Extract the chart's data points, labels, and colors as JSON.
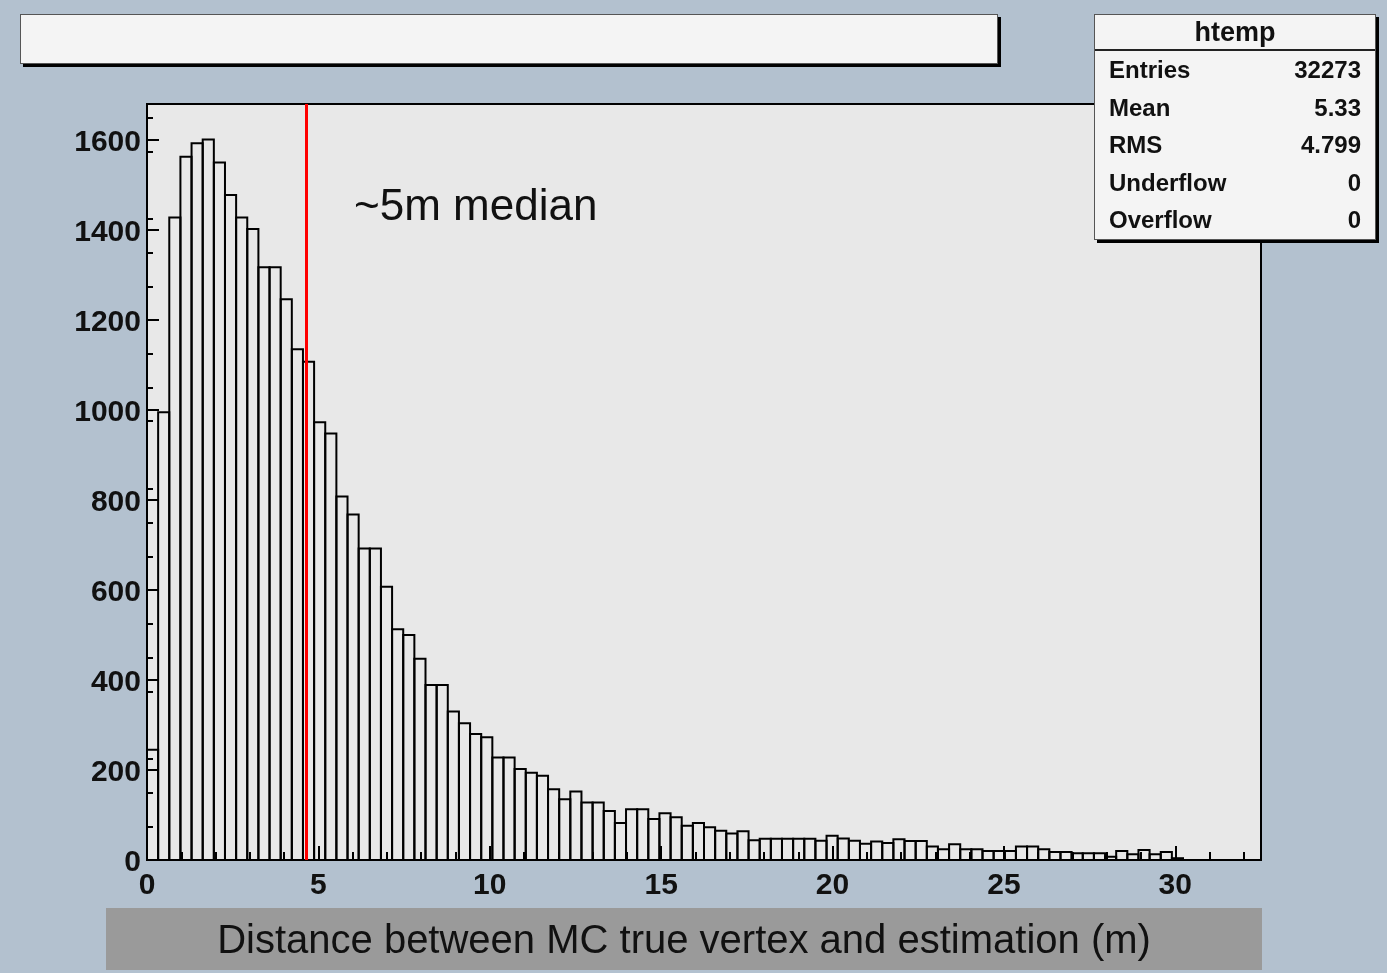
{
  "chart_data": {
    "type": "histogram",
    "xlabel": "Distance between MC true vertex and estimation (m)",
    "bins": [
      0,
      0.325,
      0.65,
      0.975,
      1.3,
      1.625,
      1.95,
      2.275,
      2.6,
      2.925,
      3.25,
      3.575,
      3.9,
      4.225,
      4.55,
      4.875,
      5.2,
      5.525,
      5.85,
      6.175,
      6.5,
      6.825,
      7.15,
      7.475,
      7.8,
      8.125,
      8.45,
      8.775,
      9.1,
      9.425,
      9.75,
      10.075,
      10.4,
      10.725,
      11.05,
      11.375,
      11.7,
      12.025,
      12.35,
      12.675,
      13,
      13.325,
      13.65,
      13.975,
      14.3,
      14.625,
      14.95,
      15.275,
      15.6,
      15.925,
      16.25,
      16.575,
      16.9,
      17.225,
      17.55,
      17.875,
      18.2,
      18.525,
      18.85,
      19.175,
      19.5,
      19.825,
      20.15,
      20.475,
      20.8,
      21.125,
      21.45,
      21.775,
      22.1,
      22.425,
      22.75,
      23.075,
      23.4,
      23.725,
      24.05,
      24.375,
      24.7,
      25.025,
      25.35,
      25.675,
      26,
      26.325,
      26.65,
      26.975,
      27.3,
      27.625,
      27.95,
      28.275,
      28.6,
      28.925,
      29.25,
      29.575,
      29.9,
      30.225,
      30.55,
      30.875,
      31.2,
      31.525,
      31.85,
      32.175,
      32.5
    ],
    "values": [
      245,
      995,
      1428,
      1563,
      1593,
      1601,
      1550,
      1478,
      1428,
      1402,
      1317,
      1317,
      1246,
      1135,
      1107,
      973,
      948,
      808,
      768,
      692,
      692,
      607,
      513,
      500,
      447,
      389,
      389,
      330,
      304,
      280,
      273,
      228,
      228,
      202,
      194,
      187,
      157,
      135,
      152,
      128,
      128,
      109,
      82,
      113,
      113,
      91,
      104,
      95,
      76,
      82,
      73,
      65,
      59,
      64,
      44,
      47,
      47,
      47,
      47,
      47,
      43,
      54,
      48,
      43,
      36,
      41,
      38,
      46,
      42,
      42,
      30,
      24,
      35,
      24,
      24,
      20,
      20,
      20,
      30,
      30,
      24,
      18,
      18,
      15,
      15,
      15,
      7,
      20,
      13,
      22,
      13,
      18,
      4,
      0,
      0,
      0,
      0,
      0,
      0,
      0
    ],
    "color": "#000000",
    "xlim": [
      0,
      32.5
    ],
    "xticks": [
      0,
      5,
      10,
      15,
      20,
      25,
      30
    ],
    "ylim": [
      0,
      1680
    ],
    "yticks": [
      0,
      200,
      400,
      600,
      800,
      1000,
      1200,
      1400,
      1600
    ],
    "grid": false,
    "ref_lines": [
      {
        "axis": "x",
        "value": 4.64,
        "label": "~5m median",
        "color": "#ff0000"
      }
    ],
    "annotations": [
      "htemp",
      "Entries",
      "32273",
      "Mean",
      "5.33",
      "RMS",
      "4.799",
      "Underflow",
      "0",
      "Overflow",
      "0"
    ]
  }
}
